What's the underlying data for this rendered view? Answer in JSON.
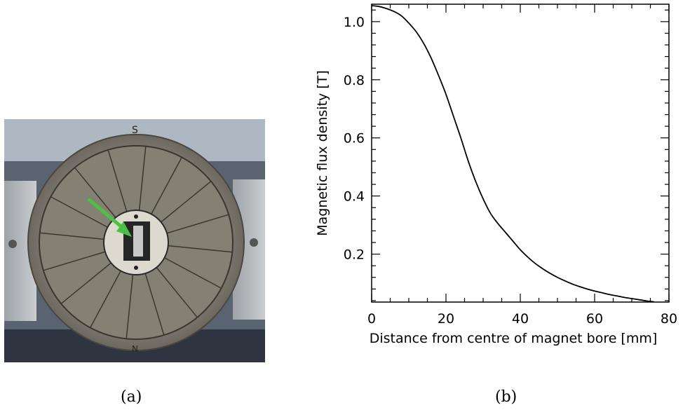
{
  "captions": {
    "a": "(a)",
    "b": "(b)"
  },
  "photo": {
    "description_icon": "magnet-photo",
    "marks": {
      "top": "S",
      "bottom": "N"
    },
    "colors": {
      "arrow": "#4cc043",
      "ring": "#7a7468",
      "segment": "#8a8478",
      "backdrop": "#5a6470"
    }
  },
  "chart_data": {
    "type": "line",
    "xlabel": "Distance from centre of magnet bore [mm]",
    "ylabel": "Magnetic flux density [T]",
    "xlim": [
      0,
      80
    ],
    "ylim": [
      0.035,
      1.06
    ],
    "xticks": [
      0,
      20,
      40,
      60,
      80
    ],
    "yticks": [
      0.2,
      0.4,
      0.6,
      0.8,
      1.0
    ],
    "xtick_labels": [
      "0",
      "20",
      "40",
      "60",
      "80"
    ],
    "ytick_labels": [
      "0.2",
      "0.4",
      "0.6",
      "0.8",
      "1.0"
    ],
    "grid": false,
    "series": [
      {
        "color": "#000000",
        "x": [
          0,
          2,
          4,
          6,
          8,
          10,
          12,
          14,
          16,
          18,
          20,
          22,
          24,
          26,
          28,
          30,
          32,
          34,
          36,
          38,
          40,
          42,
          44,
          46,
          48,
          50,
          52,
          54,
          56,
          58,
          60,
          62,
          64,
          66,
          68,
          70,
          72,
          74,
          76
        ],
        "y": [
          1.055,
          1.052,
          1.045,
          1.035,
          1.02,
          0.995,
          0.965,
          0.925,
          0.875,
          0.815,
          0.75,
          0.675,
          0.6,
          0.52,
          0.45,
          0.39,
          0.34,
          0.305,
          0.275,
          0.245,
          0.215,
          0.19,
          0.168,
          0.15,
          0.134,
          0.12,
          0.108,
          0.097,
          0.088,
          0.08,
          0.073,
          0.067,
          0.061,
          0.056,
          0.051,
          0.047,
          0.043,
          0.039,
          0.036
        ]
      }
    ]
  }
}
